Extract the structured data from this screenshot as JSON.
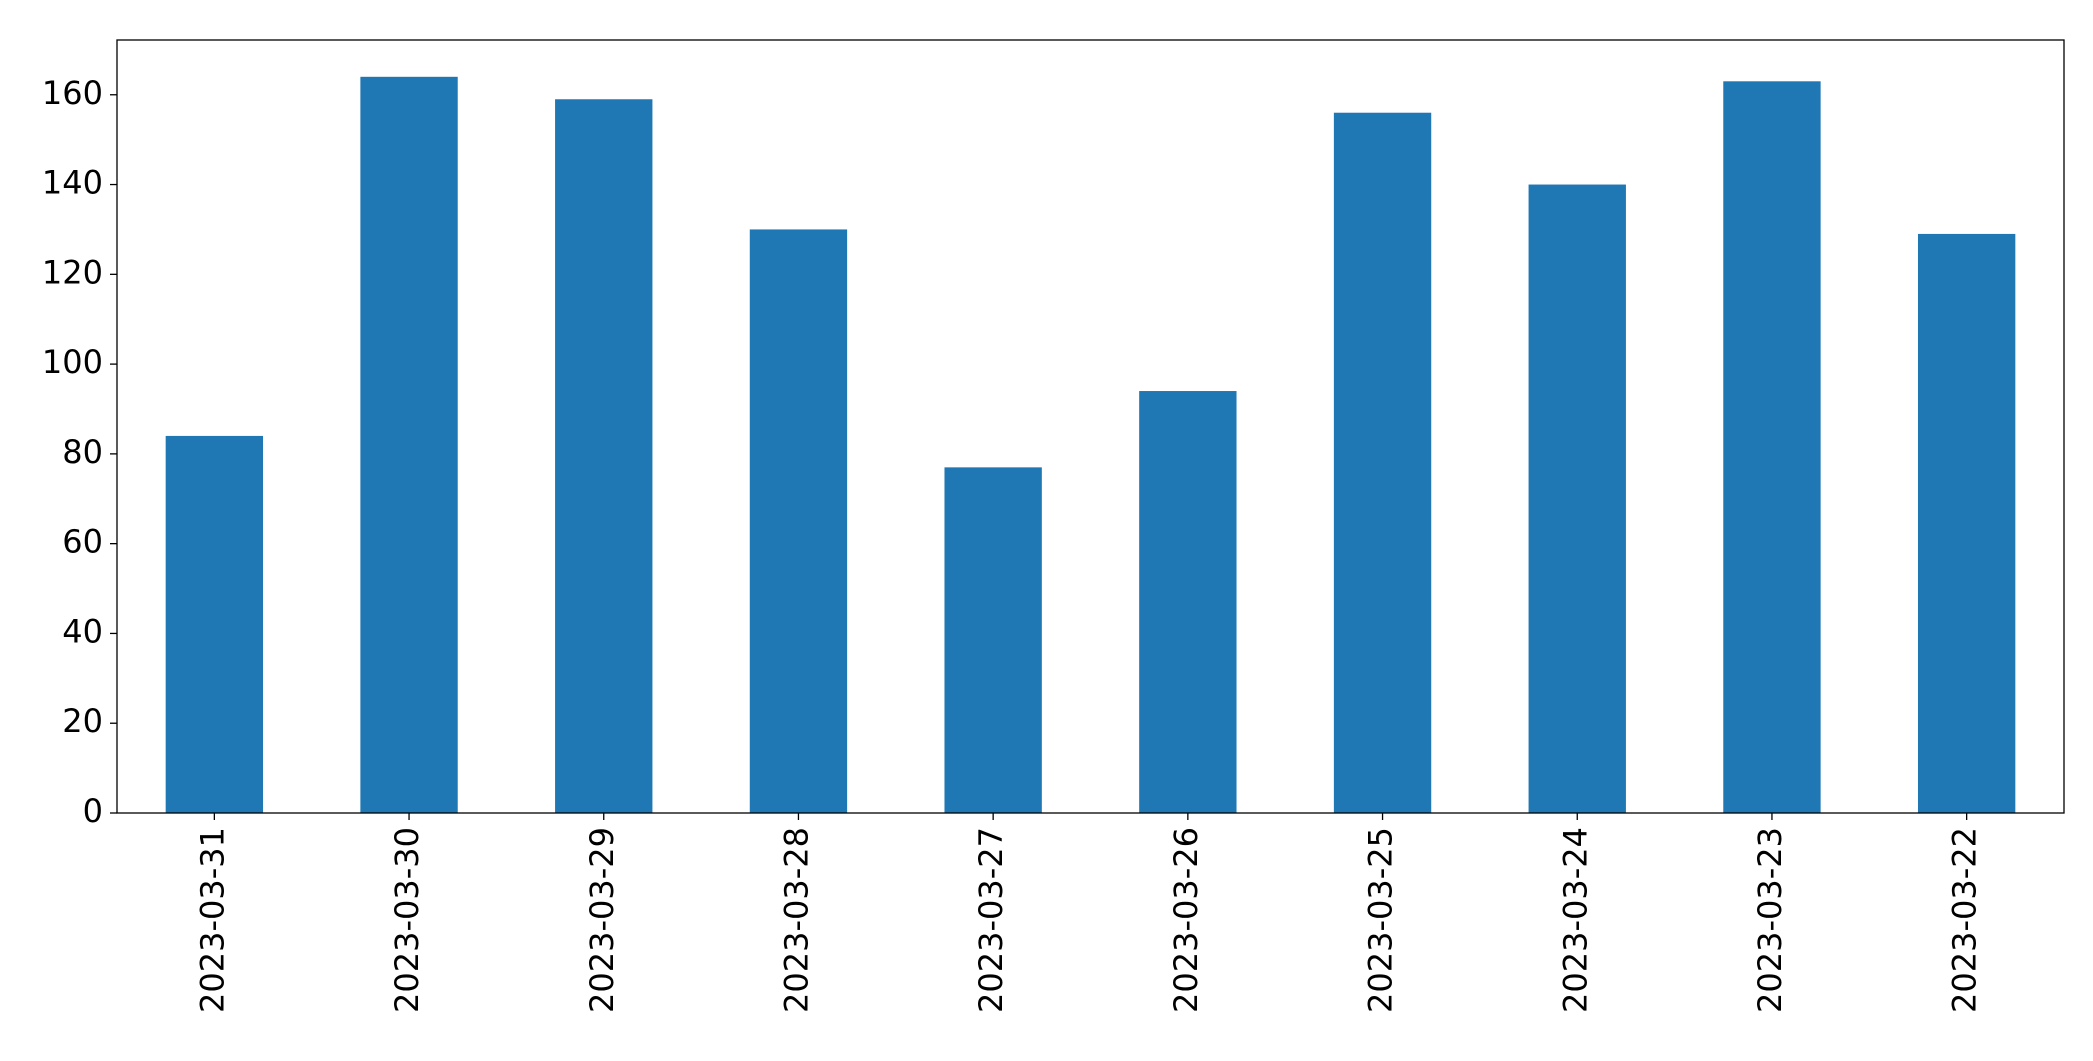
{
  "chart_data": {
    "type": "bar",
    "categories": [
      "2023-03-31",
      "2023-03-30",
      "2023-03-29",
      "2023-03-28",
      "2023-03-27",
      "2023-03-26",
      "2023-03-25",
      "2023-03-24",
      "2023-03-23",
      "2023-03-22"
    ],
    "values": [
      84,
      164,
      159,
      130,
      77,
      94,
      156,
      140,
      163,
      129
    ],
    "color": "#1f77b4",
    "ylim": [
      0,
      172.2
    ],
    "yticks": [
      0,
      20,
      40,
      60,
      80,
      100,
      120,
      140,
      160
    ],
    "grid": false
  }
}
